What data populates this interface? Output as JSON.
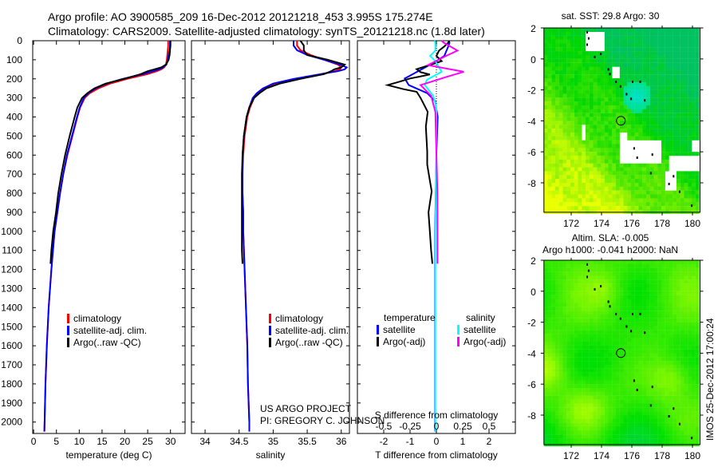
{
  "header": {
    "line1": "Argo profile: AO 3900585_209 16-Dec-2012 20121218_453 3.995S 175.274E",
    "line2": "Climatology: CARS2009. Satellite-adjusted climatology: synTS_20121218.nc (1.8d later)"
  },
  "credits": {
    "project": "US ARGO PROJECT",
    "pi": "PI: GREGORY C. JOHNSON",
    "imos": "IMOS 25-Dec-2012 17:00:24"
  },
  "colors": {
    "climatology": "#ff0000",
    "satellite": "#0000ff",
    "argo": "#000000",
    "sal_satellite": "#00ffff",
    "sal_argo": "#ff00ff"
  },
  "chart_data": [
    {
      "type": "line",
      "id": "temperature",
      "xlabel": "temperature (deg C)",
      "ylabel": "",
      "xlim": [
        -0.2,
        33.2
      ],
      "ylim": [
        2060,
        0
      ],
      "xticks": [
        "0",
        "5",
        "10",
        "15",
        "20",
        "25",
        "30"
      ],
      "yticks": [
        "0",
        "100",
        "200",
        "300",
        "400",
        "500",
        "600",
        "700",
        "800",
        "900",
        "1000",
        "1100",
        "1200",
        "1300",
        "1400",
        "1500",
        "1600",
        "1700",
        "1800",
        "1900",
        "2000"
      ],
      "legend": [
        "climatology",
        "satellite-adj. clim.",
        "Argo(..raw -QC)"
      ],
      "series": [
        {
          "name": "climatology",
          "color": "#ff0000",
          "depth": [
            0,
            25,
            50,
            75,
            100,
            125,
            140,
            150,
            160,
            175,
            200,
            225,
            250,
            275,
            300,
            350,
            400,
            500,
            600,
            700,
            800,
            900,
            1000,
            1200,
            1400,
            1600,
            1800,
            2000,
            2050
          ],
          "values": [
            29.5,
            29.5,
            29.4,
            29.3,
            29.2,
            29.0,
            28.6,
            28.0,
            27.0,
            25.0,
            20.5,
            16.8,
            14.2,
            12.3,
            11.2,
            10.2,
            9.6,
            8.5,
            7.4,
            6.5,
            5.8,
            5.2,
            4.6,
            3.9,
            3.3,
            2.9,
            2.6,
            2.4,
            2.35
          ]
        },
        {
          "name": "satellite-adj. clim.",
          "color": "#0000ff",
          "depth": [
            0,
            25,
            50,
            75,
            100,
            125,
            140,
            150,
            160,
            175,
            200,
            225,
            250,
            275,
            300,
            350,
            400,
            500,
            600,
            700,
            800,
            900,
            1000,
            1200,
            1400,
            1600,
            1800,
            2000,
            2050
          ],
          "values": [
            29.9,
            29.9,
            29.8,
            29.6,
            29.4,
            29.1,
            28.4,
            27.5,
            26.2,
            24.0,
            19.5,
            16.0,
            13.6,
            12.0,
            11.0,
            10.1,
            9.5,
            8.4,
            7.3,
            6.5,
            5.8,
            5.2,
            4.6,
            3.9,
            3.3,
            2.9,
            2.6,
            2.4,
            2.35
          ]
        },
        {
          "name": "Argo(..raw -QC)",
          "color": "#000000",
          "depth": [
            0,
            25,
            50,
            75,
            100,
            125,
            140,
            150,
            160,
            175,
            200,
            225,
            250,
            275,
            300,
            350,
            400,
            500,
            600,
            700,
            800,
            900,
            1000,
            1100,
            1170
          ],
          "values": [
            30.0,
            30.0,
            29.9,
            29.8,
            29.6,
            29.0,
            28.0,
            26.5,
            25.0,
            23.5,
            19.8,
            15.8,
            13.3,
            11.8,
            10.6,
            9.6,
            9.0,
            7.9,
            6.9,
            6.1,
            5.4,
            4.9,
            4.3,
            3.9,
            3.7
          ]
        }
      ]
    },
    {
      "type": "line",
      "id": "salinity",
      "xlabel": "salinity",
      "xlim": [
        33.8,
        36.12
      ],
      "ylim": [
        2060,
        0
      ],
      "xticks": [
        "34",
        "34.5",
        "35",
        "35.5",
        "36"
      ],
      "legend": [
        "climatology",
        "satellite-adj. clim.",
        "Argo(..raw -QC)"
      ],
      "series": [
        {
          "name": "climatology",
          "color": "#ff0000",
          "depth": [
            0,
            25,
            50,
            75,
            100,
            125,
            140,
            150,
            160,
            175,
            200,
            225,
            250,
            275,
            300,
            350,
            400,
            500,
            600,
            700,
            800,
            900,
            1000,
            1200,
            1400,
            1600,
            1800,
            2000,
            2050
          ],
          "values": [
            35.35,
            35.35,
            35.4,
            35.55,
            35.75,
            35.95,
            36.0,
            35.98,
            35.9,
            35.7,
            35.35,
            35.05,
            34.88,
            34.78,
            34.72,
            34.66,
            34.62,
            34.58,
            34.56,
            34.55,
            34.55,
            34.56,
            34.56,
            34.58,
            34.6,
            34.62,
            34.63,
            34.65,
            34.65
          ]
        },
        {
          "name": "satellite-adj. clim.",
          "color": "#0000ff",
          "depth": [
            0,
            25,
            50,
            75,
            100,
            125,
            140,
            150,
            160,
            175,
            200,
            225,
            250,
            275,
            300,
            350,
            400,
            500,
            600,
            700,
            800,
            900,
            1000,
            1200,
            1400,
            1600,
            1800,
            2000,
            2050
          ],
          "values": [
            35.3,
            35.3,
            35.35,
            35.5,
            35.75,
            35.98,
            36.08,
            36.05,
            35.95,
            35.7,
            35.3,
            35.0,
            34.85,
            34.76,
            34.7,
            34.65,
            34.61,
            34.57,
            34.55,
            34.55,
            34.55,
            34.56,
            34.56,
            34.58,
            34.6,
            34.62,
            34.63,
            34.65,
            34.65
          ]
        },
        {
          "name": "Argo(..raw -QC)",
          "color": "#000000",
          "depth": [
            0,
            25,
            50,
            75,
            100,
            125,
            140,
            150,
            160,
            175,
            200,
            225,
            250,
            275,
            300,
            350,
            400,
            500,
            600,
            700,
            800,
            900,
            1000,
            1100,
            1170
          ],
          "values": [
            35.4,
            35.45,
            35.45,
            35.5,
            35.8,
            36.05,
            36.0,
            35.9,
            35.85,
            35.75,
            35.4,
            35.1,
            34.9,
            34.8,
            34.72,
            34.65,
            34.61,
            34.57,
            34.55,
            34.54,
            34.54,
            34.54,
            34.54,
            34.54,
            34.55
          ]
        }
      ]
    },
    {
      "type": "line",
      "id": "difference",
      "xlabel": "T difference from climatology",
      "xlabel2": "S difference from climatology",
      "xlim": [
        -3,
        3
      ],
      "xlim_s": [
        -0.75,
        0.75
      ],
      "ylim": [
        2060,
        0
      ],
      "xticks": [
        "-2",
        "-1",
        "0",
        "1",
        "2"
      ],
      "xticks_s": [
        "-0.5",
        "-0.25",
        "0",
        "0.25",
        "0.5"
      ],
      "legend_headers": [
        "temperature",
        "salinity"
      ],
      "legend": [
        "satellite",
        "Argo(-adj)",
        "satellite",
        "Argo(-adj)"
      ],
      "series": [
        {
          "name": "temperature satellite",
          "units": "T",
          "color": "#0000ff",
          "depth": [
            0,
            10,
            30,
            80,
            107,
            149,
            198,
            233,
            275,
            317,
            400,
            600,
            1000,
            1500,
            2050
          ],
          "values": [
            0.45,
            0.5,
            0.45,
            0.3,
            0,
            -0.55,
            -1.2,
            -1.05,
            -0.35,
            -0.05,
            0.05,
            0.0,
            -0.05,
            -0.05,
            -0.05
          ]
        },
        {
          "name": "temperature Argo(-adj)",
          "units": "T",
          "color": "#000000",
          "depth": [
            0,
            10,
            30,
            52,
            80,
            107,
            130,
            149,
            165,
            177,
            190,
            198,
            215,
            233,
            254,
            268,
            300,
            373,
            450,
            580,
            650,
            790,
            900,
            1000,
            1100,
            1170
          ],
          "values": [
            0.5,
            0.45,
            0.3,
            0.1,
            0,
            0.2,
            -0.3,
            -0.75,
            -0.6,
            -0.25,
            -0.7,
            -1.0,
            -1.4,
            -1.85,
            -1.25,
            -0.75,
            -0.6,
            -0.33,
            -0.4,
            -0.35,
            -0.35,
            -0.18,
            -0.3,
            -0.25,
            -0.2,
            -0.15
          ]
        },
        {
          "name": "salinity satellite",
          "units": "S",
          "color": "#00ffff",
          "depth": [
            0,
            10,
            52,
            80,
            107,
            163,
            205,
            233,
            289,
            350,
            600,
            1000,
            1500,
            2050
          ],
          "values": [
            -0.02,
            -0.01,
            -0.01,
            -0.06,
            -0.01,
            0.05,
            -0.09,
            -0.11,
            -0.03,
            0,
            0,
            -0.01,
            -0.01,
            -0.01
          ]
        },
        {
          "name": "salinity Argo(-adj)",
          "units": "S",
          "color": "#ff00ff",
          "depth": [
            0,
            10,
            52,
            80,
            128,
            163,
            191,
            233,
            289,
            373,
            800,
            1170
          ],
          "values": [
            0.05,
            0.07,
            0.2,
            0.09,
            -0.08,
            0.26,
            0.09,
            -0.15,
            -0.05,
            -0.01,
            0.01,
            0.01
          ]
        }
      ]
    },
    {
      "type": "heatmap",
      "id": "sst-map",
      "title": "sat. SST: 29.8 Argo: 30",
      "xlim": [
        170.2,
        180.5
      ],
      "ylim": [
        -9.9,
        2
      ],
      "xticks": [
        "172",
        "174",
        "176",
        "178",
        "180"
      ],
      "yticks": [
        "2",
        "0",
        "-2",
        "-4",
        "-6",
        "-8"
      ],
      "profile_location": {
        "lon": 175.274,
        "lat": -3.995
      },
      "missing_regions": [
        [
          172.9,
          174.0,
          0.6,
          2.0
        ],
        [
          174.6,
          175.0,
          -1.0,
          -0.4
        ],
        [
          172.6,
          172.8,
          -5.1,
          -4.2
        ],
        [
          175.2,
          177.9,
          -6.7,
          -5.0
        ],
        [
          175.2,
          175.6,
          -5.3,
          -4.6
        ],
        [
          178.4,
          180.3,
          -7.1,
          -6.0
        ],
        [
          178.1,
          178.8,
          -8.4,
          -7.1
        ],
        [
          179.8,
          180.3,
          -5.8,
          -5.0
        ]
      ]
    },
    {
      "type": "heatmap",
      "id": "sla-map",
      "title": "Altim. SLA: -0.005",
      "subtitle": "Argo h1000: -0.041 h2000: NaN",
      "xlim": [
        170.2,
        180.5
      ],
      "ylim": [
        -9.9,
        2
      ],
      "xticks": [
        "172",
        "174",
        "176",
        "178",
        "180"
      ],
      "yticks": [
        "2",
        "0",
        "-2",
        "-4",
        "-6",
        "-8"
      ],
      "profile_location": {
        "lon": 175.274,
        "lat": -3.995
      }
    }
  ]
}
